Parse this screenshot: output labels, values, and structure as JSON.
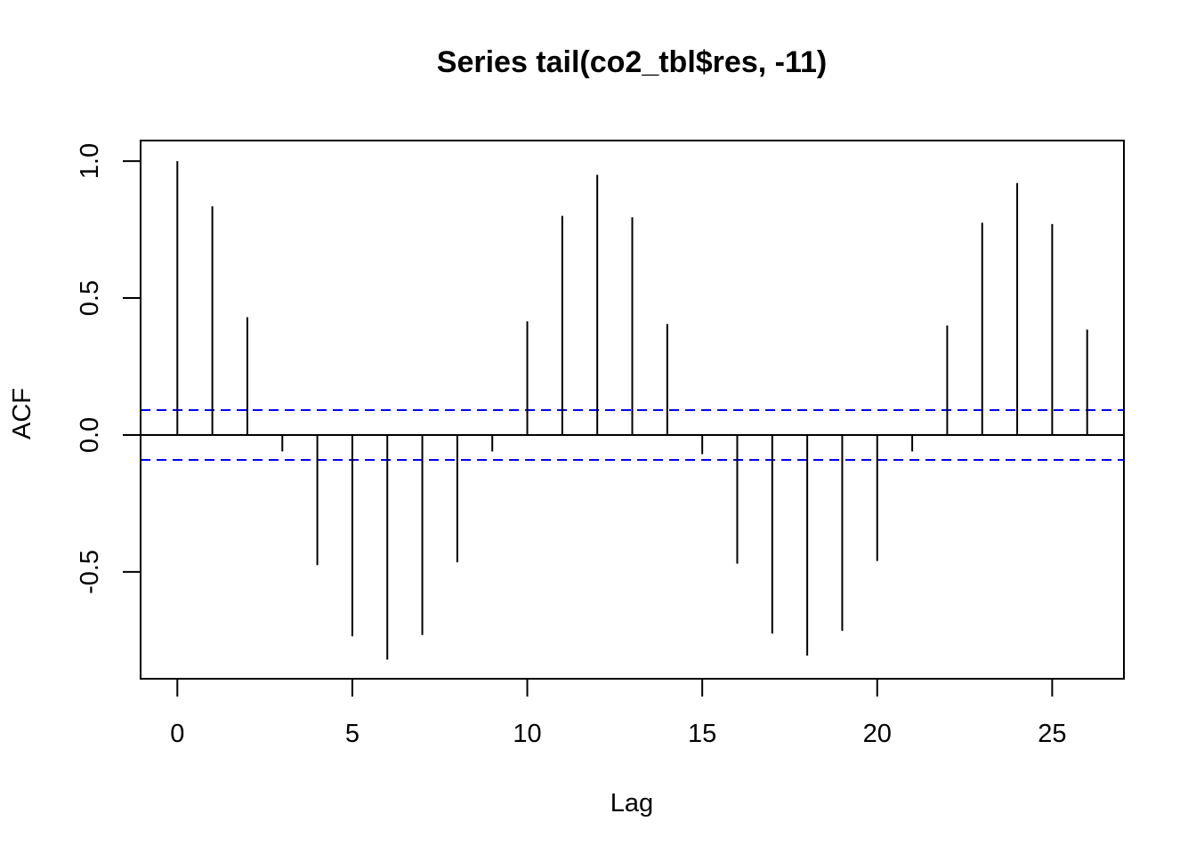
{
  "chart_data": {
    "type": "bar",
    "title": "Series  tail(co2_tbl$res, -11)",
    "xlabel": "Lag",
    "ylabel": "ACF",
    "x": [
      0,
      1,
      2,
      3,
      4,
      5,
      6,
      7,
      8,
      9,
      10,
      11,
      12,
      13,
      14,
      15,
      16,
      17,
      18,
      19,
      20,
      21,
      22,
      23,
      24,
      25,
      26
    ],
    "values": [
      1.0,
      0.835,
      0.43,
      -0.06,
      -0.475,
      -0.735,
      -0.82,
      -0.73,
      -0.465,
      -0.06,
      0.415,
      0.8,
      0.95,
      0.795,
      0.405,
      -0.07,
      -0.47,
      -0.725,
      -0.805,
      -0.715,
      -0.46,
      -0.06,
      0.4,
      0.775,
      0.92,
      0.77,
      0.385
    ],
    "confidence_bound": 0.091,
    "xlim": [
      -1.05,
      27.05
    ],
    "ylim": [
      -0.89,
      1.075
    ],
    "x_ticks": [
      0,
      5,
      10,
      15,
      20,
      25
    ],
    "x_tick_labels": [
      "0",
      "5",
      "10",
      "15",
      "20",
      "25"
    ],
    "y_ticks": [
      -0.5,
      0.0,
      0.5,
      1.0
    ],
    "y_tick_labels": [
      "-0.5",
      "0.0",
      "0.5",
      "1.0"
    ],
    "grid": false,
    "colors": {
      "spikes": "#000000",
      "confidence": "#0000ff"
    }
  }
}
